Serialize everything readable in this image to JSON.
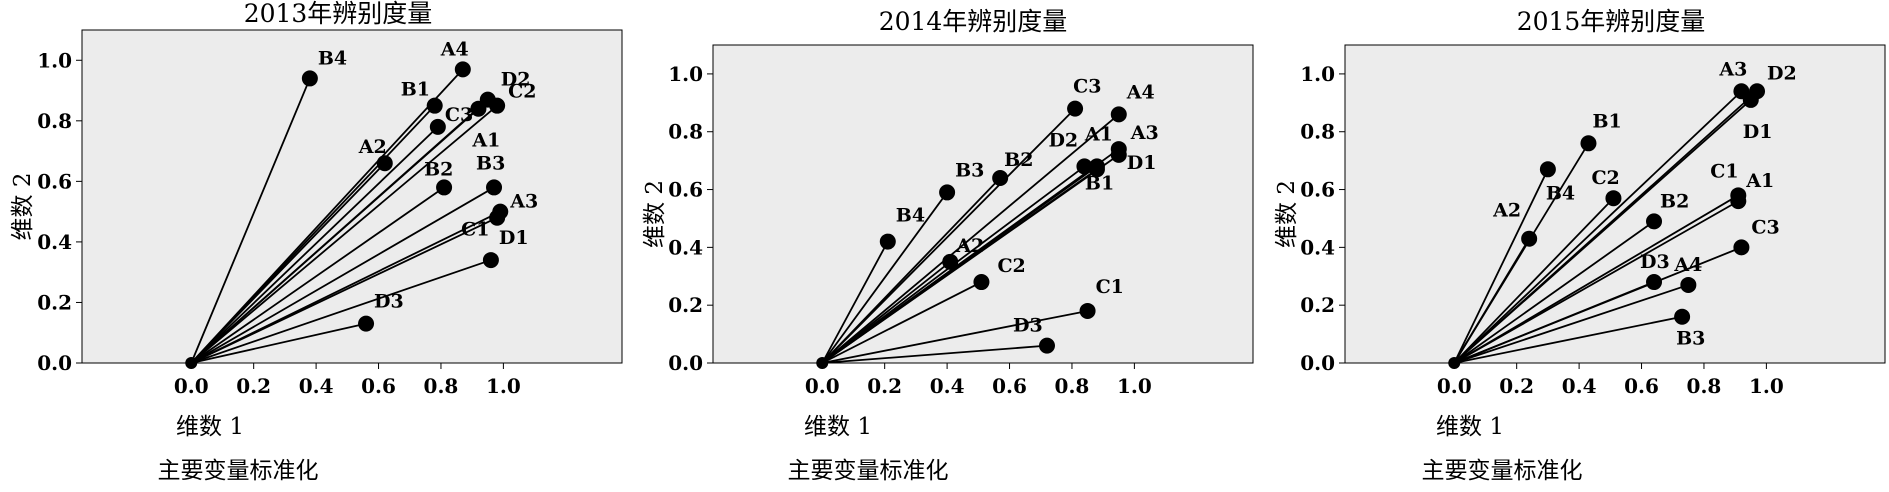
{
  "chart_data": [
    {
      "type": "scatter",
      "title": "2013年辨别度量",
      "xlabel": "维数 1",
      "ylabel": "维数 2",
      "footer": "主要变量标准化",
      "xlim": [
        -0.35,
        1.38
      ],
      "ylim": [
        0.0,
        1.1
      ],
      "xticks": [
        "0.0",
        "0.2",
        "0.4",
        "0.6",
        "0.8",
        "1.0"
      ],
      "yticks": [
        "0.0",
        "0.2",
        "0.4",
        "0.6",
        "0.8",
        "1.0"
      ],
      "grid": false,
      "vectors_from_origin": true,
      "points": [
        {
          "label": "B4",
          "x": 0.38,
          "y": 0.94
        },
        {
          "label": "A4",
          "x": 0.87,
          "y": 0.97
        },
        {
          "label": "D2",
          "x": 0.95,
          "y": 0.87
        },
        {
          "label": "C2",
          "x": 0.98,
          "y": 0.85
        },
        {
          "label": "B1",
          "x": 0.78,
          "y": 0.85
        },
        {
          "label": "C3",
          "x": 0.79,
          "y": 0.78
        },
        {
          "label": "A2",
          "x": 0.62,
          "y": 0.66
        },
        {
          "label": "A1",
          "x": 0.92,
          "y": 0.84
        },
        {
          "label": "B2",
          "x": 0.81,
          "y": 0.58
        },
        {
          "label": "B3",
          "x": 0.97,
          "y": 0.58
        },
        {
          "label": "A3",
          "x": 0.99,
          "y": 0.5
        },
        {
          "label": "C1",
          "x": 0.98,
          "y": 0.48
        },
        {
          "label": "D1",
          "x": 0.96,
          "y": 0.34
        },
        {
          "label": "D3",
          "x": 0.56,
          "y": 0.13
        }
      ]
    },
    {
      "type": "scatter",
      "title": "2014年辨别度量",
      "xlabel": "维数 1",
      "ylabel": "维数 2",
      "footer": "主要变量标准化",
      "xlim": [
        -0.35,
        1.38
      ],
      "ylim": [
        0.0,
        1.1
      ],
      "xticks": [
        "0.0",
        "0.2",
        "0.4",
        "0.6",
        "0.8",
        "1.0"
      ],
      "yticks": [
        "0.0",
        "0.2",
        "0.4",
        "0.6",
        "0.8",
        "1.0"
      ],
      "grid": false,
      "vectors_from_origin": true,
      "points": [
        {
          "label": "C3",
          "x": 0.81,
          "y": 0.88
        },
        {
          "label": "A4",
          "x": 0.95,
          "y": 0.86
        },
        {
          "label": "A3",
          "x": 0.95,
          "y": 0.74
        },
        {
          "label": "A1",
          "x": 0.88,
          "y": 0.68
        },
        {
          "label": "D2",
          "x": 0.84,
          "y": 0.68
        },
        {
          "label": "D1",
          "x": 0.95,
          "y": 0.72
        },
        {
          "label": "B1",
          "x": 0.88,
          "y": 0.67
        },
        {
          "label": "B2",
          "x": 0.57,
          "y": 0.64
        },
        {
          "label": "B3",
          "x": 0.4,
          "y": 0.59
        },
        {
          "label": "B4",
          "x": 0.21,
          "y": 0.42
        },
        {
          "label": "A2",
          "x": 0.41,
          "y": 0.35
        },
        {
          "label": "C2",
          "x": 0.51,
          "y": 0.28
        },
        {
          "label": "C1",
          "x": 0.85,
          "y": 0.18
        },
        {
          "label": "D3",
          "x": 0.72,
          "y": 0.06
        }
      ]
    },
    {
      "type": "scatter",
      "title": "2015年辨别度量",
      "xlabel": "维数 1",
      "ylabel": "维数 2",
      "footer": "主要变量标准化",
      "xlim": [
        -0.35,
        1.38
      ],
      "ylim": [
        0.0,
        1.1
      ],
      "xticks": [
        "0.0",
        "0.2",
        "0.4",
        "0.6",
        "0.8",
        "1.0"
      ],
      "yticks": [
        "0.0",
        "0.2",
        "0.4",
        "0.6",
        "0.8",
        "1.0"
      ],
      "grid": false,
      "vectors_from_origin": true,
      "points": [
        {
          "label": "A3",
          "x": 0.92,
          "y": 0.94
        },
        {
          "label": "D2",
          "x": 0.97,
          "y": 0.94
        },
        {
          "label": "D1",
          "x": 0.95,
          "y": 0.91
        },
        {
          "label": "B1",
          "x": 0.43,
          "y": 0.76
        },
        {
          "label": "B4",
          "x": 0.3,
          "y": 0.67
        },
        {
          "label": "C2",
          "x": 0.51,
          "y": 0.57
        },
        {
          "label": "A2",
          "x": 0.24,
          "y": 0.43
        },
        {
          "label": "C1",
          "x": 0.91,
          "y": 0.58
        },
        {
          "label": "A1",
          "x": 0.91,
          "y": 0.56
        },
        {
          "label": "B2",
          "x": 0.64,
          "y": 0.49
        },
        {
          "label": "C3",
          "x": 0.92,
          "y": 0.4
        },
        {
          "label": "D3",
          "x": 0.64,
          "y": 0.28
        },
        {
          "label": "A4",
          "x": 0.75,
          "y": 0.27
        },
        {
          "label": "B3",
          "x": 0.73,
          "y": 0.16
        }
      ]
    }
  ]
}
